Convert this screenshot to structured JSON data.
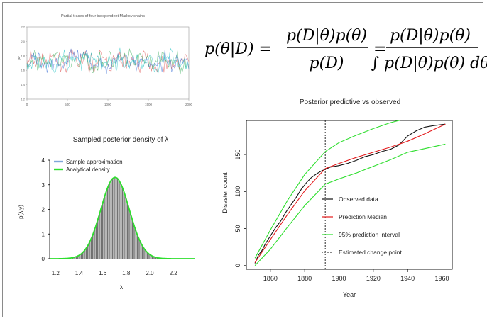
{
  "colors": {
    "frame": "#8a8a8a",
    "green": "#2dde2d",
    "red": "#e41a1c",
    "observed": "#111111",
    "bars": "#707070",
    "blue_legend": "#7fa6d8"
  },
  "equation": {
    "lhs": "p(θ|D) =",
    "num1": "p(D|θ)p(θ)",
    "den1": "p(D)",
    "eq2": "=",
    "num2": "p(D|θ)p(θ)",
    "den2": "∫ p(D|θ)p(θ) dθ"
  },
  "chart_data": [
    {
      "type": "line",
      "title": "Partial traces of four independent Markov chains",
      "ylabel": "λ",
      "xlabel": "",
      "xlim": [
        0,
        2000
      ],
      "ylim": [
        1.2,
        2.2
      ],
      "xticks": [
        0,
        500,
        1000,
        1500,
        2000
      ],
      "yticks": [
        1.2,
        1.4,
        1.6,
        1.8,
        2.0,
        2.2
      ],
      "series_colors": [
        "#e06060",
        "#40b060",
        "#4a7ad8",
        "#30c8c8"
      ],
      "mean": 1.72,
      "sd": 0.12
    },
    {
      "type": "bar",
      "title": "Sampled posterior density of λ",
      "xlabel": "λ",
      "ylabel": "p(λ|y)",
      "xlim": [
        1.15,
        2.38
      ],
      "ylim": [
        0,
        4
      ],
      "xticks": [
        1.2,
        1.4,
        1.6,
        1.8,
        2.0,
        2.2
      ],
      "yticks": [
        0,
        1,
        2,
        3,
        4
      ],
      "density_mean": 1.705,
      "density_sd": 0.121,
      "peak_density": 3.3,
      "legend": [
        "Sample approximation",
        "Analytical density"
      ],
      "legend_position": "top-left"
    },
    {
      "type": "line",
      "title": "Posterior predictive vs observed",
      "xlabel": "Year",
      "ylabel": "Disaster count",
      "xlim": [
        1846,
        1966
      ],
      "ylim": [
        -5,
        196
      ],
      "xticks": [
        1860,
        1880,
        1900,
        1920,
        1940,
        1960
      ],
      "yticks": [
        0,
        50,
        100,
        150
      ],
      "change_point": 1892,
      "legend": [
        "Observed data",
        "Prediction Median",
        "95% prediction interval",
        "Estimated change point"
      ],
      "legend_position": "bottom-right",
      "series": [
        {
          "name": "Observed data",
          "x": [
            1851,
            1853,
            1855,
            1857,
            1860,
            1863,
            1866,
            1869,
            1872,
            1875,
            1878,
            1881,
            1884,
            1887,
            1890,
            1892,
            1895,
            1900,
            1905,
            1910,
            1915,
            1920,
            1925,
            1930,
            1935,
            1940,
            1945,
            1950,
            1955,
            1962
          ],
          "y": [
            3,
            14,
            20,
            29,
            40,
            51,
            60,
            72,
            82,
            92,
            103,
            112,
            119,
            124,
            128,
            130,
            133,
            135,
            138,
            142,
            147,
            150,
            154,
            157,
            163,
            175,
            182,
            187,
            189,
            191
          ]
        },
        {
          "name": "Prediction Median",
          "x": [
            1851,
            1860,
            1870,
            1880,
            1892,
            1900,
            1910,
            1920,
            1930,
            1940,
            1950,
            1962
          ],
          "y": [
            4,
            35,
            69,
            101,
            131,
            138,
            146,
            153,
            160,
            168,
            178,
            191
          ]
        },
        {
          "name": "95% upper",
          "x": [
            1851,
            1860,
            1870,
            1880,
            1892,
            1900,
            1910,
            1920,
            1930,
            1940,
            1962
          ],
          "y": [
            10,
            48,
            88,
            123,
            154,
            166,
            176,
            185,
            193,
            199,
            205
          ]
        },
        {
          "name": "95% lower",
          "x": [
            1851,
            1860,
            1870,
            1880,
            1892,
            1900,
            1910,
            1920,
            1930,
            1940,
            1962
          ],
          "y": [
            0,
            22,
            52,
            81,
            110,
            117,
            125,
            134,
            143,
            153,
            164
          ]
        }
      ]
    }
  ]
}
